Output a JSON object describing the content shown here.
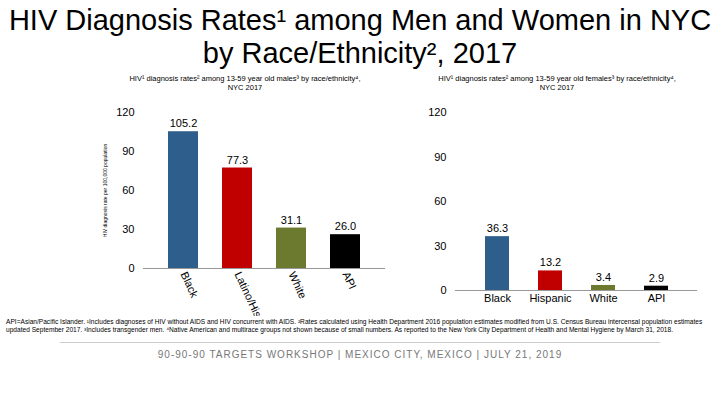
{
  "title": "HIV Diagnosis Rates¹ among Men and Women in NYC by Race/Ethnicity², 2017",
  "chart_data": [
    {
      "type": "bar",
      "title": "HIV¹ diagnosis rates² among 13-59 year old males³ by race/ethnicity⁴, NYC 2017",
      "y_label": "HIV diagnosis rate per 100,000 population",
      "categories": [
        "Black",
        "Latino/Hispanic",
        "White",
        "API"
      ],
      "values": [
        105.2,
        77.3,
        31.1,
        26.0
      ],
      "value_labels": [
        "105.2",
        "77.3",
        "31.1",
        "26.0"
      ],
      "colors": [
        "#2e5e8c",
        "#c00000",
        "#6b7a2e",
        "#000000"
      ],
      "ylim": [
        0,
        120
      ],
      "yticks": [
        0,
        30,
        60,
        90,
        120
      ],
      "data_labels": true,
      "grid": false
    },
    {
      "type": "bar",
      "title": "HIV¹ diagnosis rates² among 13-59 year old females³ by race/ethnicity⁴, NYC 2017",
      "categories": [
        "Black",
        "Hispanic",
        "White",
        "API"
      ],
      "values": [
        36.3,
        13.2,
        3.4,
        2.9
      ],
      "value_labels": [
        "36.3",
        "13.2",
        "3.4",
        "2.9"
      ],
      "colors": [
        "#2e5e8c",
        "#c00000",
        "#6b7a2e",
        "#000000"
      ],
      "ylim": [
        0,
        120
      ],
      "yticks": [
        0,
        30,
        60,
        90,
        120
      ],
      "data_labels": true,
      "grid": false
    }
  ],
  "footnote": "API=Asian/Pacific Islander. ¹Includes diagnoses of HIV without AIDS and HIV concurrent with AIDS. ²Rates calculated using Health Department 2016 population estimates modified from U.S. Census Bureau intercensal population estimates updated September 2017. ³Includes transgender men. ⁴Native American and multirace groups not shown because of small numbers. As reported to the New York City Department of Health and Mental Hygiene by March 31, 2018.",
  "footer": "90-90-90 TARGETS WORKSHOP | MEXICO CITY, MEXICO | JULY 21, 2019"
}
